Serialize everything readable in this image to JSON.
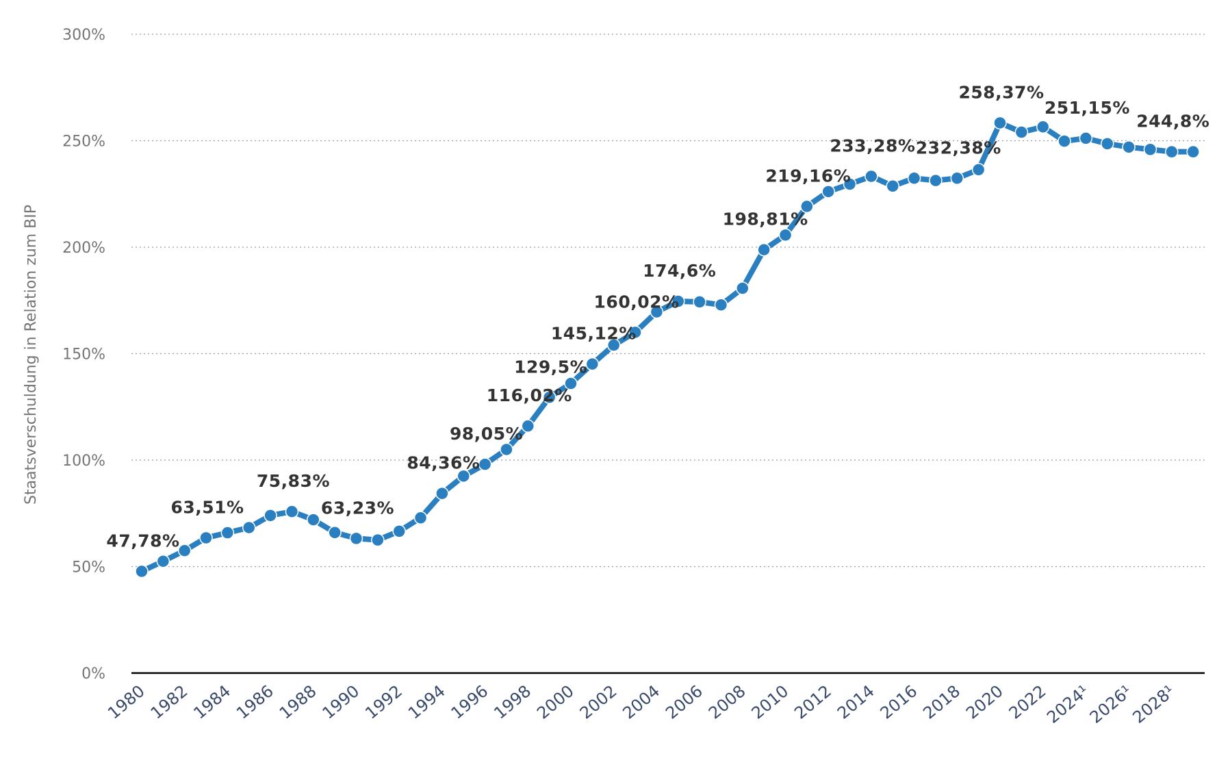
{
  "chart_data": {
    "type": "line",
    "title": "",
    "xlabel": "",
    "ylabel": "Staatsverschuldung in Relation zum BIP",
    "ylim": [
      0,
      300
    ],
    "y_ticks": [
      "0%",
      "50%",
      "100%",
      "150%",
      "200%",
      "250%",
      "300%"
    ],
    "y_tick_values": [
      0,
      50,
      100,
      150,
      200,
      250,
      300
    ],
    "grid": true,
    "color": "#2a7fc0",
    "x": [
      "1980",
      "1981",
      "1982",
      "1983",
      "1984",
      "1985",
      "1986",
      "1987",
      "1988",
      "1989",
      "1990",
      "1991",
      "1992",
      "1993",
      "1994",
      "1995",
      "1996",
      "1997",
      "1998",
      "1999",
      "2000",
      "2001",
      "2002",
      "2003",
      "2004",
      "2005",
      "2006",
      "2007",
      "2008",
      "2009",
      "2010",
      "2011",
      "2012",
      "2013",
      "2014",
      "2015",
      "2016",
      "2017",
      "2018",
      "2019",
      "2020",
      "2021",
      "2022",
      "2023",
      "2024¹",
      "2025¹",
      "2026¹",
      "2027¹",
      "2028¹",
      "2029¹"
    ],
    "x_tick_labels": [
      "1980",
      "1982",
      "1984",
      "1986",
      "1988",
      "1990",
      "1992",
      "1994",
      "1996",
      "1998",
      "2000",
      "2002",
      "2004",
      "2006",
      "2008",
      "2010",
      "2012",
      "2014",
      "2016",
      "2018",
      "2020",
      "2022",
      "2024¹",
      "2026¹",
      "2028¹"
    ],
    "series": [
      {
        "name": "Staatsverschuldung in Relation zum BIP",
        "values": [
          47.78,
          52.5,
          57.5,
          63.51,
          65.9,
          68.3,
          74.0,
          75.83,
          72.0,
          66.0,
          63.23,
          62.5,
          66.6,
          72.9,
          84.36,
          92.5,
          98.05,
          105.0,
          116.02,
          129.5,
          136.0,
          145.12,
          154.0,
          160.02,
          169.6,
          174.6,
          174.3,
          172.9,
          180.7,
          198.81,
          205.7,
          219.16,
          226.1,
          229.6,
          233.28,
          228.7,
          232.38,
          231.3,
          232.38,
          236.4,
          258.37,
          254.0,
          256.5,
          249.8,
          251.15,
          248.6,
          247.0,
          245.9,
          244.8,
          244.8
        ]
      }
    ],
    "data_labels": [
      {
        "index": 0,
        "text": "47,78%"
      },
      {
        "index": 3,
        "text": "63,51%"
      },
      {
        "index": 7,
        "text": "75,83%"
      },
      {
        "index": 10,
        "text": "63,23%"
      },
      {
        "index": 14,
        "text": "84,36%"
      },
      {
        "index": 16,
        "text": "98,05%"
      },
      {
        "index": 18,
        "text": "116,02%"
      },
      {
        "index": 19,
        "text": "129,5%"
      },
      {
        "index": 21,
        "text": "145,12%"
      },
      {
        "index": 23,
        "text": "160,02%"
      },
      {
        "index": 25,
        "text": "174,6%"
      },
      {
        "index": 29,
        "text": "198,81%"
      },
      {
        "index": 31,
        "text": "219,16%"
      },
      {
        "index": 34,
        "text": "233,28%"
      },
      {
        "index": 38,
        "text": "232,38%"
      },
      {
        "index": 40,
        "text": "258,37%"
      },
      {
        "index": 44,
        "text": "251,15%"
      },
      {
        "index": 48,
        "text": "244,8%"
      }
    ]
  }
}
